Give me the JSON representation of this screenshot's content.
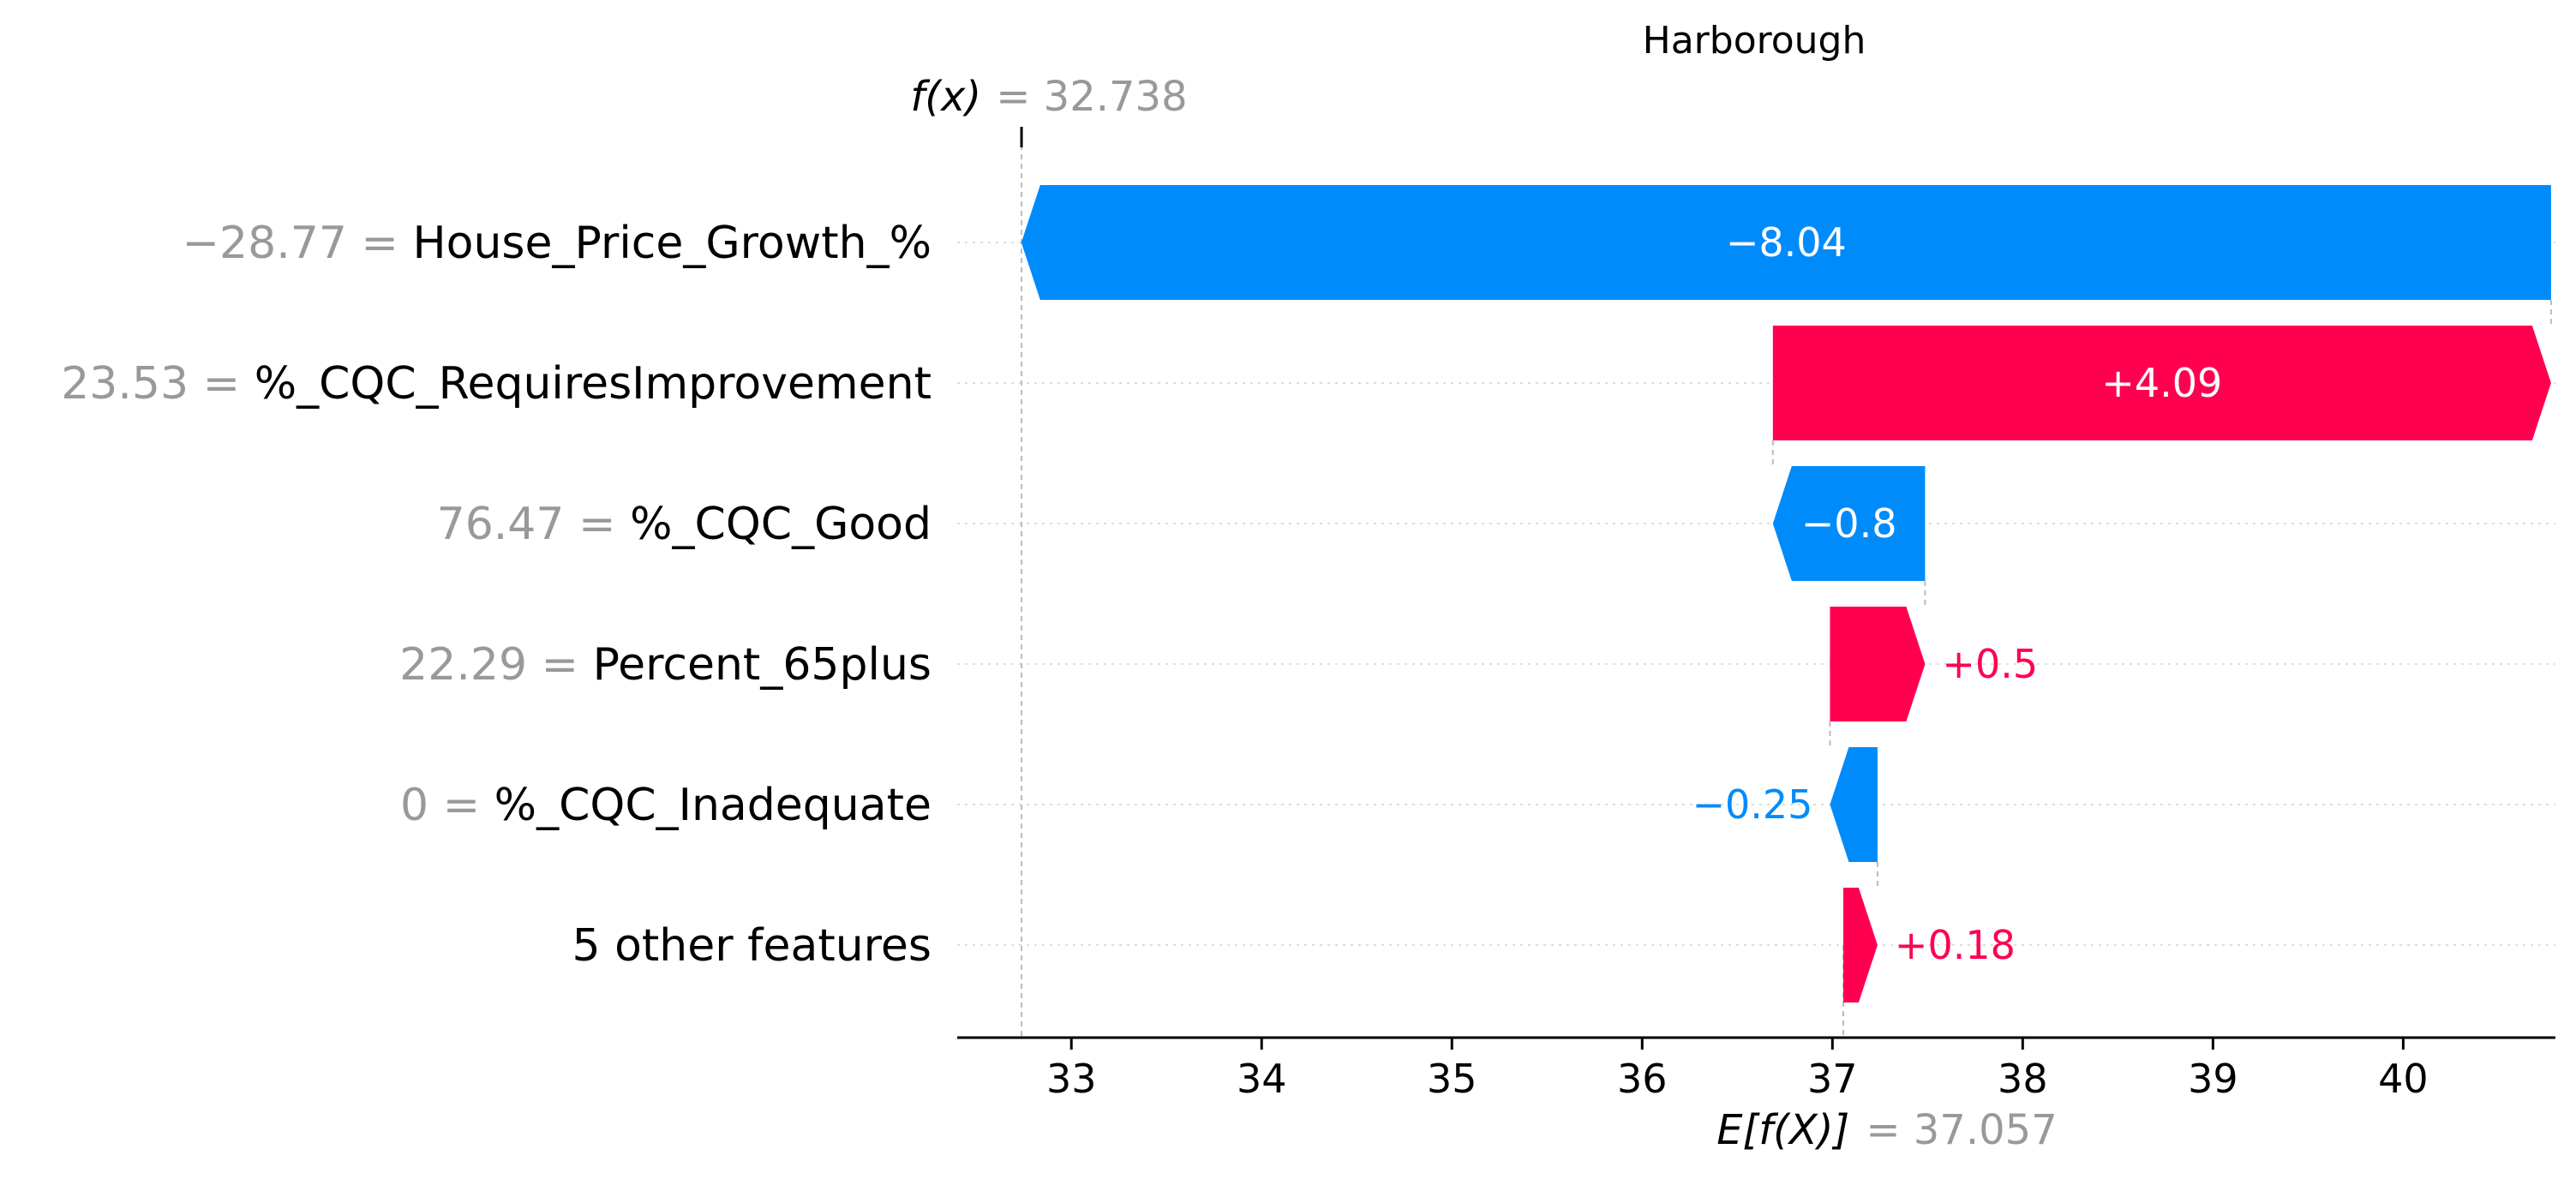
{
  "chart_data": {
    "type": "waterfall",
    "title": "Harborough",
    "fx_label": "f(x)",
    "fx_value": "= 32.738",
    "expected_label": "E[f(X)]",
    "expected_value": "= 37.057",
    "base_value": 37.057,
    "final_value": 32.738,
    "xlim": [
      32.4,
      40.8
    ],
    "xticks": [
      33,
      34,
      35,
      36,
      37,
      38,
      39,
      40
    ],
    "xtick_labels": [
      "33",
      "34",
      "35",
      "36",
      "37",
      "38",
      "39",
      "40"
    ],
    "colors": {
      "positive": "#ff0051",
      "negative": "#008bfb",
      "value_text": "#999999"
    },
    "features": [
      {
        "value_text": "−28.77 =",
        "name": "House_Price_Growth_%",
        "contribution": -8.04,
        "label": "−8.04"
      },
      {
        "value_text": "23.53 =",
        "name": "%_CQC_RequiresImprovement",
        "contribution": 4.09,
        "label": "+4.09"
      },
      {
        "value_text": "76.47 =",
        "name": "%_CQC_Good",
        "contribution": -0.8,
        "label": "−0.8"
      },
      {
        "value_text": "22.29 =",
        "name": "Percent_65plus",
        "contribution": 0.5,
        "label": "+0.5"
      },
      {
        "value_text": "0 =",
        "name": "%_CQC_Inadequate",
        "contribution": -0.25,
        "label": "−0.25"
      },
      {
        "value_text": "",
        "name": "5 other features",
        "contribution": 0.18,
        "label": "+0.18"
      }
    ]
  }
}
